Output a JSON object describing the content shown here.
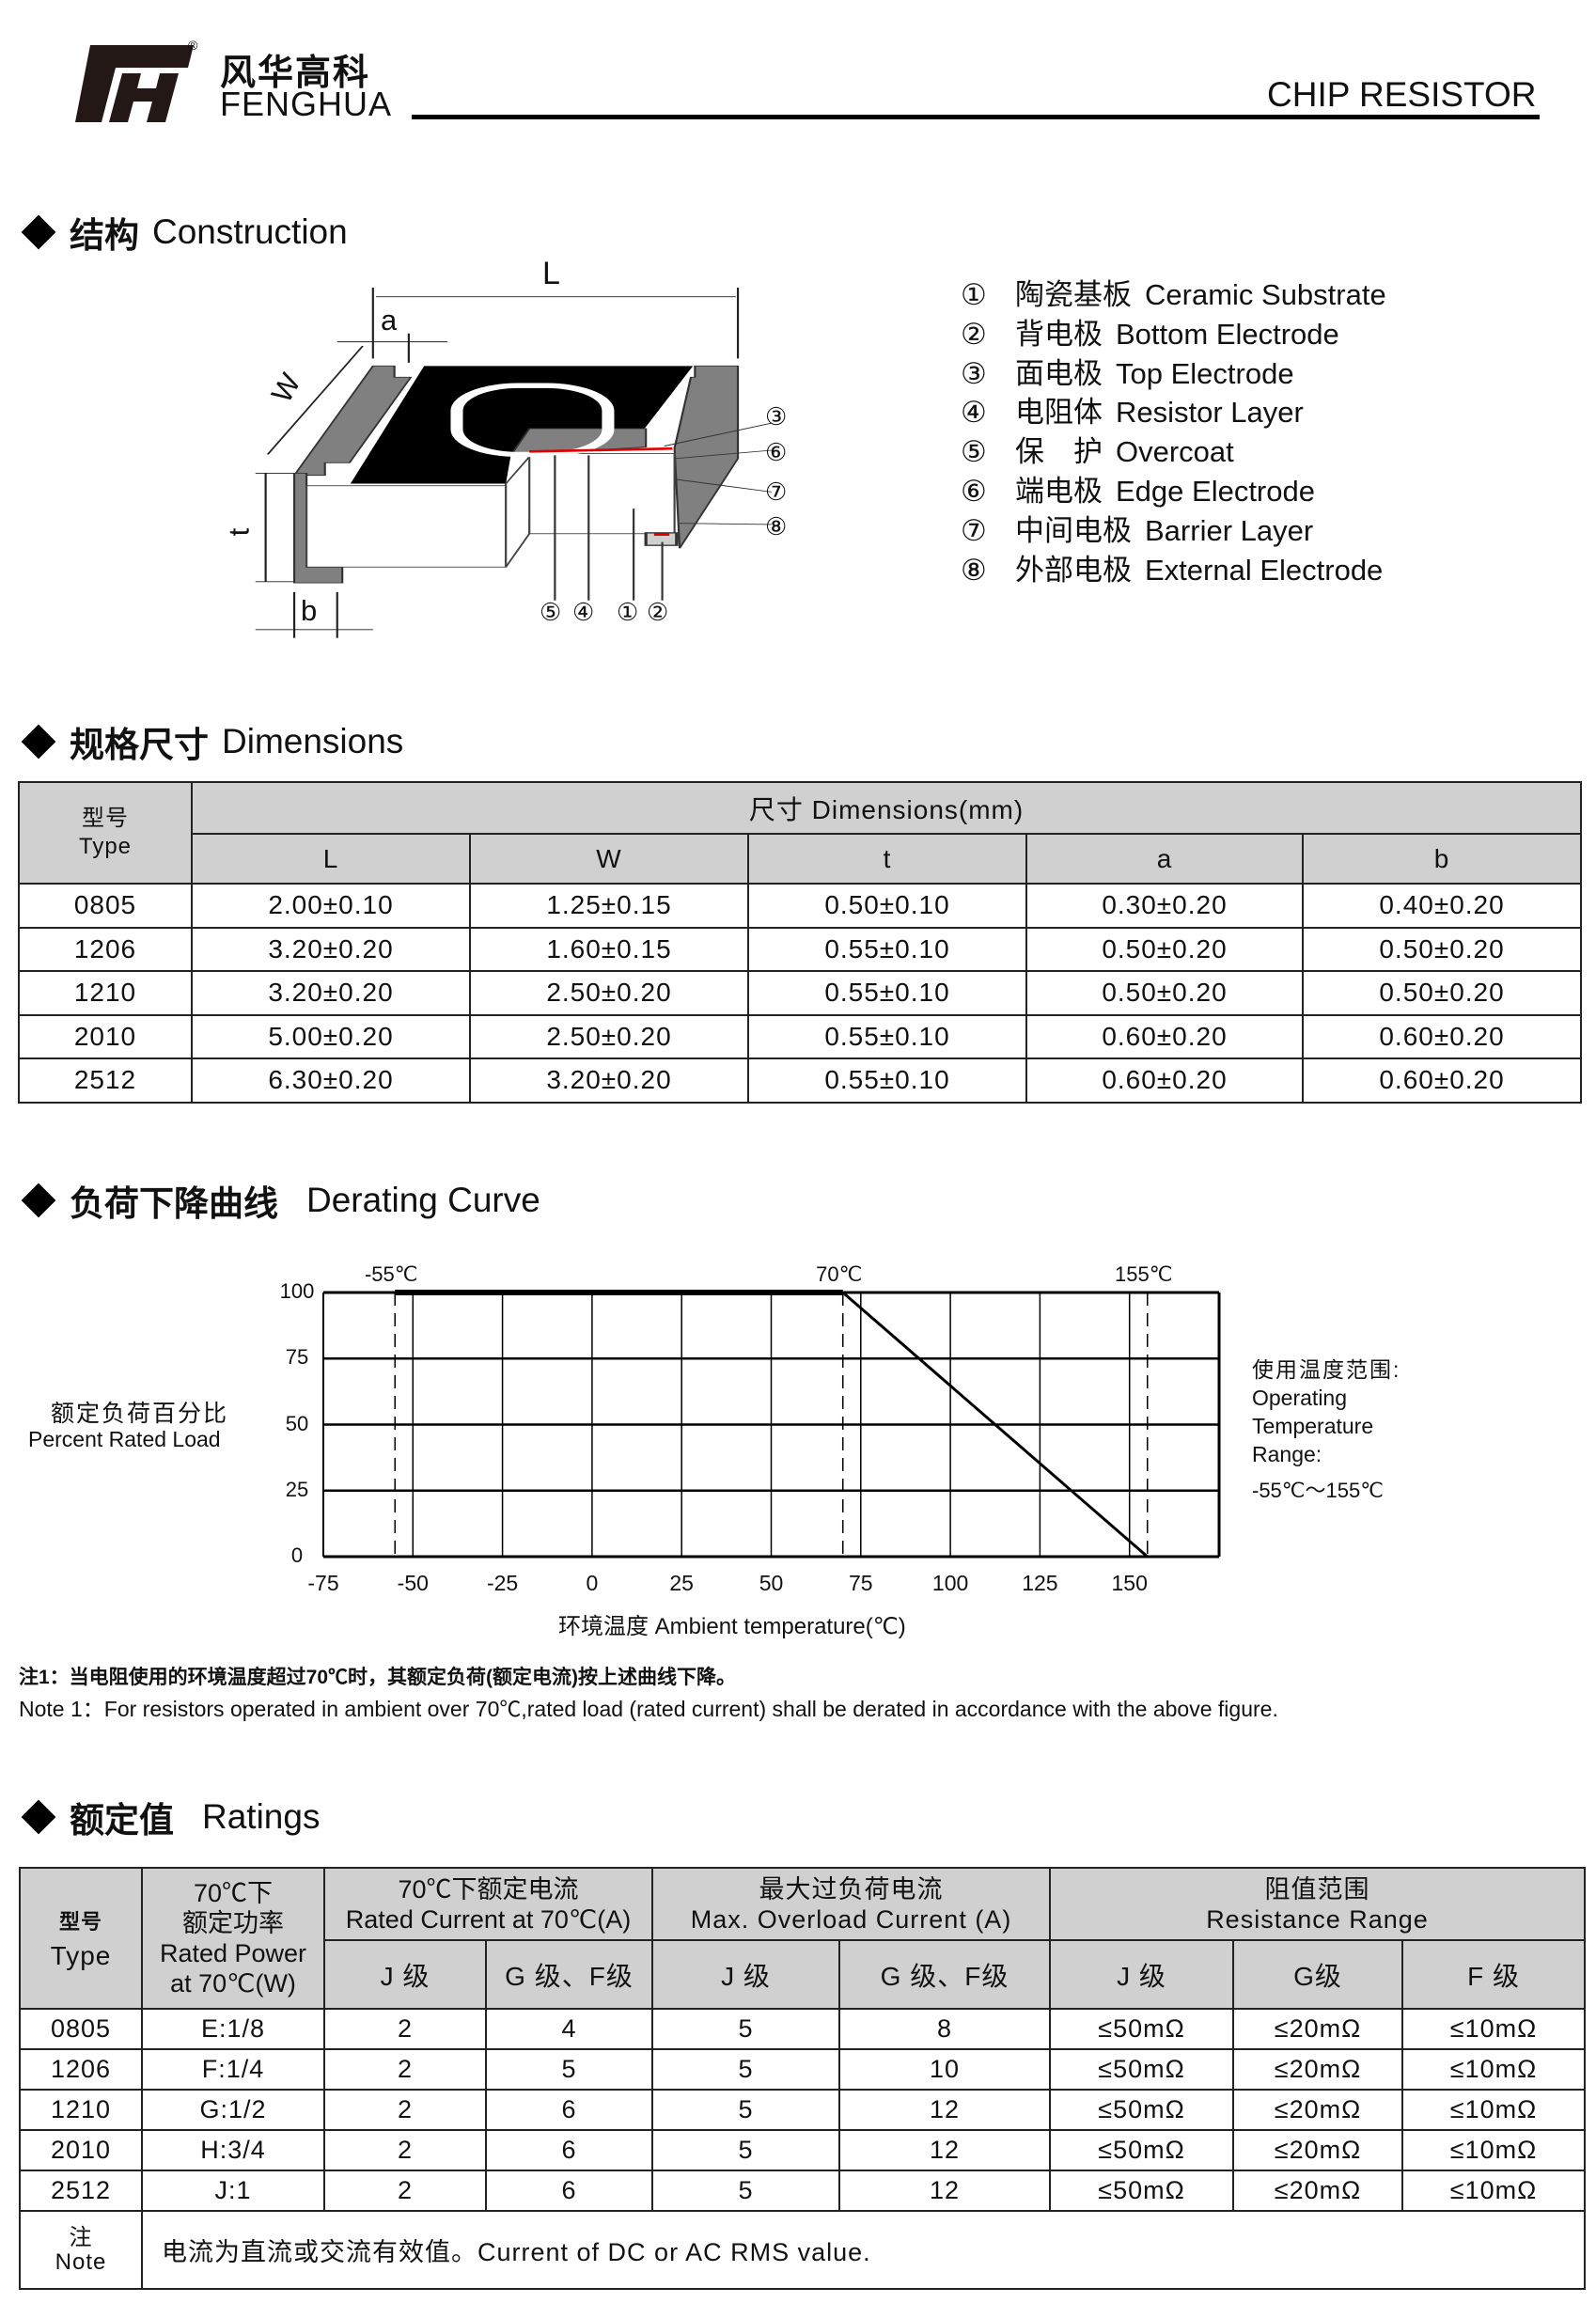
{
  "header": {
    "logo_cn": "风华高科",
    "logo_en": "FENGHUA",
    "registered": "®",
    "title": "CHIP RESISTOR"
  },
  "construction": {
    "heading_cn": "结构",
    "heading_en": "Construction",
    "dims": {
      "L": "L",
      "a": "a",
      "W": "W",
      "t": "t",
      "b": "b"
    },
    "callouts_right": [
      "③",
      "⑥",
      "⑦",
      "⑧"
    ],
    "callouts_bottom": [
      "⑤",
      "④",
      "①",
      "②"
    ],
    "legend": [
      {
        "num": "①",
        "cn": "陶瓷基板",
        "en": "Ceramic Substrate"
      },
      {
        "num": "②",
        "cn": "背电极",
        "en": "Bottom Electrode"
      },
      {
        "num": "③",
        "cn": "面电极",
        "en": "Top Electrode"
      },
      {
        "num": "④",
        "cn": "电阻体",
        "en": "Resistor Layer"
      },
      {
        "num": "⑤",
        "cn": "保　护",
        "en": "Overcoat"
      },
      {
        "num": "⑥",
        "cn": "端电极",
        "en": "Edge Electrode"
      },
      {
        "num": "⑦",
        "cn": "中间电极",
        "en": "Barrier Layer"
      },
      {
        "num": "⑧",
        "cn": "外部电极",
        "en": "External Electrode"
      }
    ]
  },
  "dimensions": {
    "heading_cn": "规格尺寸",
    "heading_en": "Dimensions",
    "type_cn": "型号",
    "type_en": "Type",
    "group_header": "尺寸  Dimensions(mm)",
    "columns": [
      "L",
      "W",
      "t",
      "a",
      "b"
    ],
    "rows": [
      [
        "0805",
        "2.00±0.10",
        "1.25±0.15",
        "0.50±0.10",
        "0.30±0.20",
        "0.40±0.20"
      ],
      [
        "1206",
        "3.20±0.20",
        "1.60±0.15",
        "0.55±0.10",
        "0.50±0.20",
        "0.50±0.20"
      ],
      [
        "1210",
        "3.20±0.20",
        "2.50±0.20",
        "0.55±0.10",
        "0.50±0.20",
        "0.50±0.20"
      ],
      [
        "2010",
        "5.00±0.20",
        "2.50±0.20",
        "0.55±0.10",
        "0.60±0.20",
        "0.60±0.20"
      ],
      [
        "2512",
        "6.30±0.20",
        "3.20±0.20",
        "0.55±0.10",
        "0.60±0.20",
        "0.60±0.20"
      ]
    ]
  },
  "derating": {
    "heading_cn": "负荷下降曲线",
    "heading_en": "Derating Curve",
    "range_cn": "使用温度范围:",
    "range_en": [
      "Operating",
      "Temperature",
      "Range:"
    ],
    "range_value": "-55℃～155℃",
    "note_cn": "注1：当电阻使用的环境温度超过70℃时，其额定负荷(额定电流)按上述曲线下降。",
    "note_en": "Note 1：For resistors operated in ambient over 70℃,rated load (rated current) shall be derated in accordance with the above figure."
  },
  "chart_data": {
    "type": "line",
    "xlabel": "环境温度  Ambient temperature(℃)",
    "ylabel_cn": "额定负荷百分比",
    "ylabel_en": "Percent Rated Load",
    "xlim": [
      -75,
      175
    ],
    "ylim": [
      0,
      100
    ],
    "xticks": [
      -75,
      -50,
      -25,
      0,
      25,
      50,
      75,
      100,
      125,
      150
    ],
    "yticks": [
      0,
      25,
      50,
      75,
      100
    ],
    "grid": true,
    "markers": [
      {
        "x": -55,
        "label": "-55℃"
      },
      {
        "x": 70,
        "label": "70℃"
      },
      {
        "x": 155,
        "label": "155℃"
      }
    ],
    "series": [
      {
        "x": [
          -55,
          70,
          155
        ],
        "y": [
          100,
          100,
          0
        ]
      }
    ]
  },
  "ratings": {
    "heading_cn": "额定值",
    "heading_en": "Ratings",
    "type_cn": "型号",
    "type_en": "Type",
    "power": [
      "70℃下",
      "额定功率",
      "Rated Power",
      "at 70℃(W)"
    ],
    "rated_current": [
      "70℃下额定电流",
      "Rated Current at 70℃(A)"
    ],
    "overload": [
      "最大过负荷电流",
      "Max. Overload Current (A)"
    ],
    "resistance": [
      "阻值范围",
      "Resistance Range"
    ],
    "sub": [
      "J 级",
      "G 级、F级",
      "J 级",
      "G 级、F级",
      "J 级",
      "G级",
      "F 级"
    ],
    "rows": [
      [
        "0805",
        "E:1/8",
        "2",
        "4",
        "5",
        "8",
        "≤50mΩ",
        "≤20mΩ",
        "≤10mΩ"
      ],
      [
        "1206",
        "F:1/4",
        "2",
        "5",
        "5",
        "10",
        "≤50mΩ",
        "≤20mΩ",
        "≤10mΩ"
      ],
      [
        "1210",
        "G:1/2",
        "2",
        "6",
        "5",
        "12",
        "≤50mΩ",
        "≤20mΩ",
        "≤10mΩ"
      ],
      [
        "2010",
        "H:3/4",
        "2",
        "6",
        "5",
        "12",
        "≤50mΩ",
        "≤20mΩ",
        "≤10mΩ"
      ],
      [
        "2512",
        "J:1",
        "2",
        "6",
        "5",
        "12",
        "≤50mΩ",
        "≤20mΩ",
        "≤10mΩ"
      ]
    ],
    "note_cn": "注",
    "note_en": "Note",
    "note_text": "电流为直流或交流有效值。Current of DC or AC RMS value."
  }
}
